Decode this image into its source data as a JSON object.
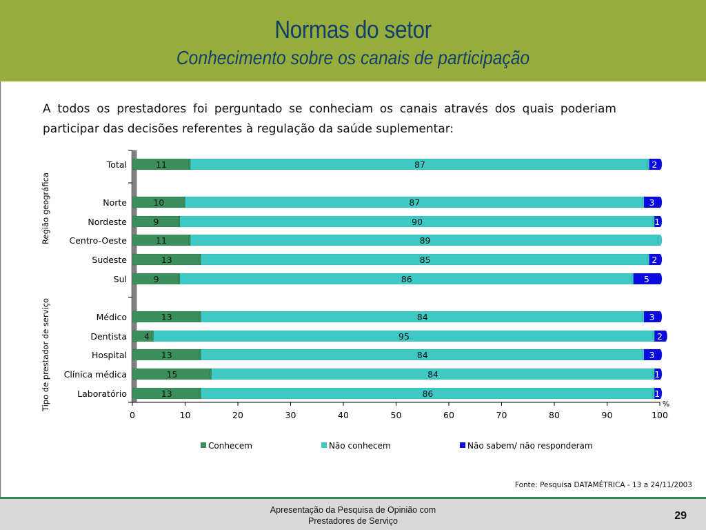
{
  "header": {
    "title": "Normas do setor",
    "subtitle": "Conhecimento sobre os canais de participação"
  },
  "intro": "A todos os prestadores foi perguntado se conheciam os canais através dos quais poderiam participar das decisões referentes à regulação da saúde suplementar:",
  "source": "Fonte: Pesquisa DATAMÉTRICA - 13 a 24/11/2003",
  "footer": {
    "line1": "Apresentação da Pesquisa de Opinião com",
    "line2": "Prestadores de Serviço",
    "page": "29"
  },
  "colors": {
    "header_bg": "#97ad3b",
    "title_text": "#123e6b",
    "conhecem": "#3a8f5c",
    "nao_conhecem": "#3ec9c4",
    "nao_sabem": "#0a0ae0"
  },
  "chart_data": {
    "type": "bar",
    "orientation": "horizontal",
    "stacked": true,
    "categories": [
      "Total",
      "Norte",
      "Nordeste",
      "Centro-Oeste",
      "Sudeste",
      "Sul",
      "Médico",
      "Dentista",
      "Hospital",
      "Clínica médica",
      "Laboratório"
    ],
    "groups": [
      {
        "label": "Região geográfica",
        "categories": [
          "Norte",
          "Nordeste",
          "Centro-Oeste",
          "Sudeste",
          "Sul"
        ]
      },
      {
        "label": "Tipo de prestador de serviço",
        "categories": [
          "Médico",
          "Dentista",
          "Hospital",
          "Clínica médica",
          "Laboratório"
        ]
      }
    ],
    "series": [
      {
        "name": "Conhecem",
        "color": "#3a8f5c",
        "values": [
          11,
          10,
          9,
          11,
          13,
          9,
          13,
          4,
          13,
          15,
          13
        ]
      },
      {
        "name": "Não conhecem",
        "color": "#3ec9c4",
        "values": [
          87,
          87,
          90,
          89,
          85,
          86,
          84,
          95,
          84,
          84,
          86
        ]
      },
      {
        "name": "Não sabem/ não responderam",
        "color": "#0a0ae0",
        "values": [
          2,
          3,
          1,
          null,
          2,
          5,
          3,
          2,
          3,
          1,
          1
        ]
      }
    ],
    "xlim": [
      0,
      100
    ],
    "xticks": [
      0,
      10,
      20,
      30,
      40,
      50,
      60,
      70,
      80,
      90,
      100
    ],
    "xunit": "%",
    "legend": "bottom"
  }
}
